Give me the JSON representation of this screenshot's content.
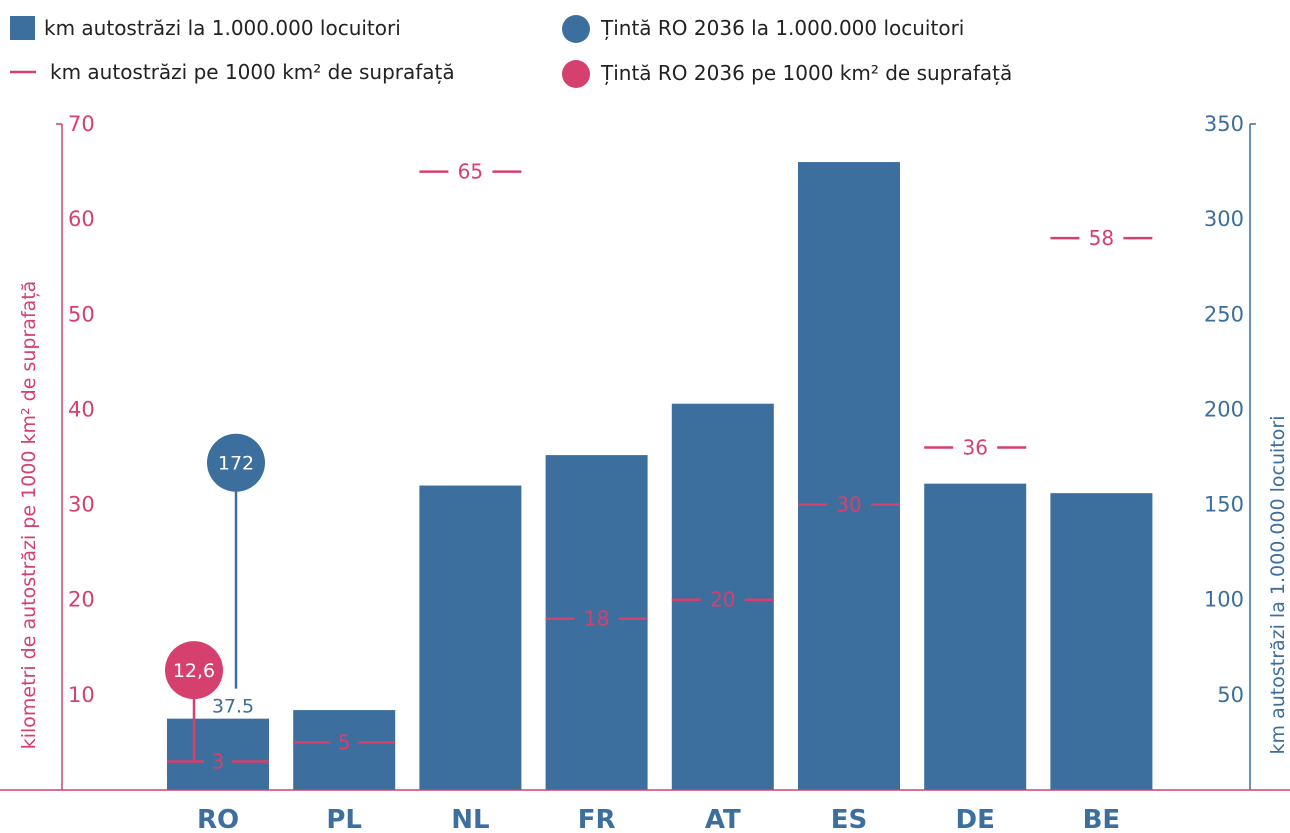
{
  "colors": {
    "bar": "#3d6f9e",
    "density": "#d6406e",
    "axis_left": "#d6406e",
    "axis_right": "#3d6f9e",
    "baseline": "#d6406e",
    "text": "#222222"
  },
  "legend": {
    "bars": "km autostrăzi la 1.000.000 locuitori",
    "target_bars": "Țintă RO 2036 la 1.000.000 locuitori",
    "density": "km autostrăzi pe 1000 km² de suprafață",
    "target_density": "Țintă RO 2036 pe 1000 km² de suprafață"
  },
  "chart_data": {
    "type": "bar",
    "categories": [
      "RO",
      "PL",
      "NL",
      "FR",
      "AT",
      "ES",
      "DE",
      "BE"
    ],
    "series": [
      {
        "name": "km autostrăzi la 1.000.000 locuitori",
        "axis": "right",
        "values": [
          37.5,
          42,
          160,
          176,
          203,
          330,
          161,
          156
        ]
      },
      {
        "name": "km autostrăzi pe 1000 km² de suprafață",
        "axis": "left",
        "values": [
          3,
          5,
          65,
          18,
          20,
          30,
          36,
          58
        ],
        "labels": [
          "3",
          "5",
          "65",
          "18",
          "20",
          "30",
          "36",
          "58"
        ]
      }
    ],
    "bar_value_labels": [
      {
        "category": "RO",
        "text": "37.5"
      }
    ],
    "targets": [
      {
        "name": "Țintă RO 2036 la 1.000.000 locuitori",
        "category": "RO",
        "axis": "right",
        "value": 172,
        "label": "172"
      },
      {
        "name": "Țintă RO 2036 pe 1000 km² de suprafață",
        "category": "RO",
        "axis": "left",
        "value": 12.6,
        "label": "12,6"
      }
    ],
    "y_left": {
      "label": "kilometri de autostrăzi pe 1000 km² de suprafață",
      "ylim": [
        0,
        70
      ],
      "ticks": [
        10,
        20,
        30,
        40,
        50,
        60,
        70
      ]
    },
    "y_right": {
      "label": "km autostrăzi la  1.000.000 locuitori",
      "ylim": [
        0,
        350
      ],
      "ticks": [
        50,
        100,
        150,
        200,
        250,
        300,
        350
      ]
    },
    "grid": false,
    "legend_position": "top"
  }
}
